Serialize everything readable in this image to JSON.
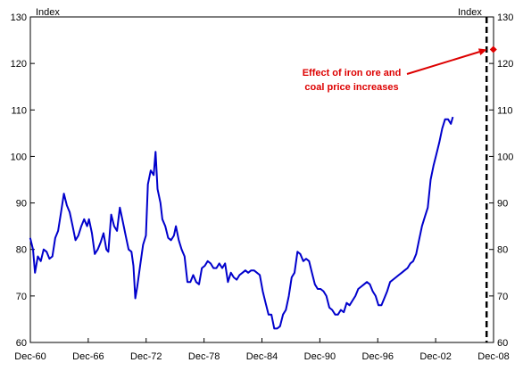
{
  "chart_data": {
    "type": "line",
    "title": "",
    "xlabel": "",
    "ylabel_left": "Index",
    "ylabel_right": "Index",
    "ylim": [
      60,
      130
    ],
    "y_ticks": [
      60,
      70,
      80,
      90,
      100,
      110,
      120,
      130
    ],
    "x_ticks": [
      "Dec-60",
      "Dec-66",
      "Dec-72",
      "Dec-78",
      "Dec-84",
      "Dec-90",
      "Dec-96",
      "Dec-02",
      "Dec-08"
    ],
    "xlim": [
      1960.92,
      2008.92
    ],
    "grid": false,
    "legend": "none",
    "colors": {
      "series": "#0000cc",
      "annotation": "#dd0000",
      "forecast_line": "#000000"
    },
    "series": [
      {
        "points": [
          [
            1960.9,
            82.5
          ],
          [
            1961.2,
            80.0
          ],
          [
            1961.4,
            75.0
          ],
          [
            1961.7,
            78.5
          ],
          [
            1962.0,
            77.5
          ],
          [
            1962.3,
            80.0
          ],
          [
            1962.6,
            79.5
          ],
          [
            1962.9,
            78.0
          ],
          [
            1963.2,
            78.5
          ],
          [
            1963.5,
            82.5
          ],
          [
            1963.8,
            84.0
          ],
          [
            1964.1,
            88.0
          ],
          [
            1964.4,
            92.0
          ],
          [
            1964.7,
            89.5
          ],
          [
            1965.0,
            88.0
          ],
          [
            1965.3,
            85.0
          ],
          [
            1965.6,
            82.0
          ],
          [
            1965.9,
            83.0
          ],
          [
            1966.2,
            85.0
          ],
          [
            1966.5,
            86.5
          ],
          [
            1966.8,
            85.0
          ],
          [
            1967.0,
            86.5
          ],
          [
            1967.3,
            83.5
          ],
          [
            1967.6,
            79.0
          ],
          [
            1967.9,
            80.0
          ],
          [
            1968.2,
            81.5
          ],
          [
            1968.5,
            83.5
          ],
          [
            1968.8,
            80.0
          ],
          [
            1969.0,
            79.5
          ],
          [
            1969.3,
            87.5
          ],
          [
            1969.6,
            85.0
          ],
          [
            1969.9,
            84.0
          ],
          [
            1970.2,
            89.0
          ],
          [
            1970.5,
            86.0
          ],
          [
            1970.8,
            83.0
          ],
          [
            1971.1,
            80.0
          ],
          [
            1971.4,
            79.5
          ],
          [
            1971.6,
            76.5
          ],
          [
            1971.8,
            69.5
          ],
          [
            1972.0,
            72.0
          ],
          [
            1972.3,
            76.5
          ],
          [
            1972.6,
            81.0
          ],
          [
            1972.9,
            83.0
          ],
          [
            1973.1,
            94.0
          ],
          [
            1973.4,
            97.0
          ],
          [
            1973.7,
            96.0
          ],
          [
            1973.9,
            101.0
          ],
          [
            1974.1,
            93.0
          ],
          [
            1974.4,
            90.0
          ],
          [
            1974.6,
            86.5
          ],
          [
            1974.9,
            85.0
          ],
          [
            1975.2,
            82.5
          ],
          [
            1975.5,
            82.0
          ],
          [
            1975.8,
            83.0
          ],
          [
            1976.0,
            85.0
          ],
          [
            1976.3,
            82.0
          ],
          [
            1976.6,
            80.0
          ],
          [
            1976.9,
            78.5
          ],
          [
            1977.2,
            73.0
          ],
          [
            1977.5,
            73.0
          ],
          [
            1977.8,
            74.5
          ],
          [
            1978.1,
            73.0
          ],
          [
            1978.4,
            72.5
          ],
          [
            1978.7,
            76.0
          ],
          [
            1979.0,
            76.5
          ],
          [
            1979.3,
            77.5
          ],
          [
            1979.6,
            77.0
          ],
          [
            1979.9,
            76.0
          ],
          [
            1980.2,
            76.0
          ],
          [
            1980.5,
            77.0
          ],
          [
            1980.8,
            76.0
          ],
          [
            1981.1,
            77.0
          ],
          [
            1981.4,
            73.0
          ],
          [
            1981.7,
            75.0
          ],
          [
            1982.0,
            74.0
          ],
          [
            1982.3,
            73.5
          ],
          [
            1982.6,
            74.5
          ],
          [
            1982.9,
            75.0
          ],
          [
            1983.2,
            75.5
          ],
          [
            1983.5,
            75.0
          ],
          [
            1983.8,
            75.5
          ],
          [
            1984.1,
            75.5
          ],
          [
            1984.4,
            75.0
          ],
          [
            1984.7,
            74.5
          ],
          [
            1985.0,
            71.0
          ],
          [
            1985.3,
            68.5
          ],
          [
            1985.6,
            66.0
          ],
          [
            1985.9,
            66.0
          ],
          [
            1986.2,
            63.0
          ],
          [
            1986.5,
            63.0
          ],
          [
            1986.8,
            63.5
          ],
          [
            1987.1,
            66.0
          ],
          [
            1987.4,
            67.0
          ],
          [
            1987.7,
            70.0
          ],
          [
            1988.0,
            74.0
          ],
          [
            1988.3,
            75.0
          ],
          [
            1988.6,
            79.5
          ],
          [
            1988.9,
            79.0
          ],
          [
            1989.2,
            77.5
          ],
          [
            1989.5,
            78.0
          ],
          [
            1989.8,
            77.5
          ],
          [
            1990.1,
            75.0
          ],
          [
            1990.4,
            72.5
          ],
          [
            1990.7,
            71.5
          ],
          [
            1991.0,
            71.5
          ],
          [
            1991.3,
            71.0
          ],
          [
            1991.6,
            70.0
          ],
          [
            1991.9,
            67.5
          ],
          [
            1992.2,
            67.0
          ],
          [
            1992.5,
            66.0
          ],
          [
            1992.8,
            66.0
          ],
          [
            1993.1,
            67.0
          ],
          [
            1993.4,
            66.5
          ],
          [
            1993.7,
            68.5
          ],
          [
            1994.0,
            68.0
          ],
          [
            1994.3,
            69.0
          ],
          [
            1994.6,
            70.0
          ],
          [
            1994.9,
            71.5
          ],
          [
            1995.2,
            72.0
          ],
          [
            1995.5,
            72.5
          ],
          [
            1995.8,
            73.0
          ],
          [
            1996.1,
            72.5
          ],
          [
            1996.4,
            71.0
          ],
          [
            1996.7,
            70.0
          ],
          [
            1997.0,
            68.0
          ],
          [
            1997.3,
            68.0
          ],
          [
            1997.6,
            69.5
          ],
          [
            1997.9,
            71.0
          ],
          [
            1998.2,
            73.0
          ],
          [
            1998.5,
            73.5
          ],
          [
            1998.8,
            74.0
          ],
          [
            1999.1,
            74.5
          ],
          [
            1999.4,
            75.0
          ],
          [
            1999.7,
            75.5
          ],
          [
            2000.0,
            76.0
          ],
          [
            2000.3,
            77.0
          ],
          [
            2000.6,
            77.5
          ],
          [
            2000.9,
            79.0
          ],
          [
            2001.2,
            82.0
          ],
          [
            2001.5,
            85.0
          ],
          [
            2001.8,
            87.0
          ],
          [
            2002.1,
            89.0
          ],
          [
            2002.4,
            95.0
          ],
          [
            2002.7,
            98.0
          ],
          [
            2003.0,
            100.5
          ],
          [
            2003.3,
            103.0
          ],
          [
            2003.6,
            106.0
          ],
          [
            2003.9,
            108.0
          ],
          [
            2004.2,
            108.0
          ],
          [
            2004.5,
            107.0
          ],
          [
            2004.7,
            108.5
          ]
        ]
      }
    ],
    "forecast_marker": {
      "x": 2008.9,
      "y": 123.0
    },
    "forecast_divider_x": 2008.2,
    "annotation": {
      "lines": [
        "Effect of iron ore and",
        "coal price increases"
      ],
      "arrow_target": {
        "x": 2008.8,
        "y": 123.0
      }
    }
  }
}
